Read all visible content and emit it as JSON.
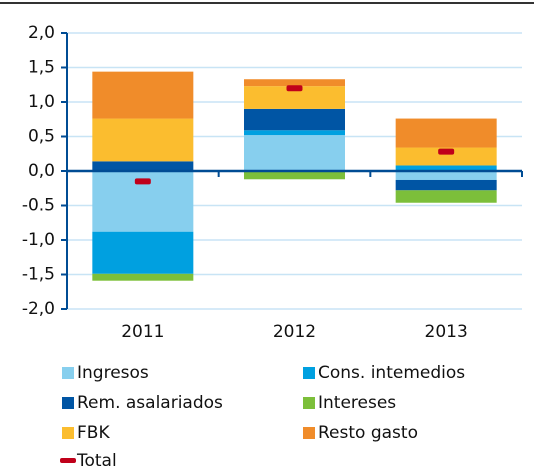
{
  "chart_data": {
    "type": "stacked_bar",
    "categories": [
      "2011",
      "2012",
      "2013"
    ],
    "series": [
      {
        "name": "Ingresos",
        "color": "#87cfee",
        "values": [
          -0.88,
          0.52,
          -0.13
        ]
      },
      {
        "name": "Cons. intemedios",
        "color": "#00a0e0",
        "values": [
          -0.61,
          0.07,
          0.08
        ]
      },
      {
        "name": "Rem. asalariados",
        "color": "#0055a4",
        "values": [
          0.14,
          0.31,
          -0.15
        ]
      },
      {
        "name": "Intereses",
        "color": "#7cbf3a",
        "values": [
          -0.1,
          -0.12,
          -0.18
        ]
      },
      {
        "name": "FBK",
        "color": "#fbbd2f",
        "values": [
          0.62,
          0.33,
          0.26
        ]
      },
      {
        "name": "Resto gasto",
        "color": "#f08c2a",
        "values": [
          0.68,
          0.1,
          0.42
        ]
      }
    ],
    "total": {
      "name": "Total",
      "color": "#c0001a",
      "values": [
        -0.15,
        1.2,
        0.28
      ]
    },
    "ylim": [
      -2,
      2
    ],
    "yticks": [
      {
        "value": -2,
        "label": "-2,0"
      },
      {
        "value": -1.5,
        "label": "-1,5"
      },
      {
        "value": -1,
        "label": "-1,0"
      },
      {
        "value": -0.5,
        "label": "-0.5"
      },
      {
        "value": 0,
        "label": "0,0"
      },
      {
        "value": 0.5,
        "label": "0,5"
      },
      {
        "value": 1,
        "label": "1,0"
      },
      {
        "value": 1.5,
        "label": "1,5"
      },
      {
        "value": 2,
        "label": "2,0"
      }
    ],
    "grid": true
  }
}
